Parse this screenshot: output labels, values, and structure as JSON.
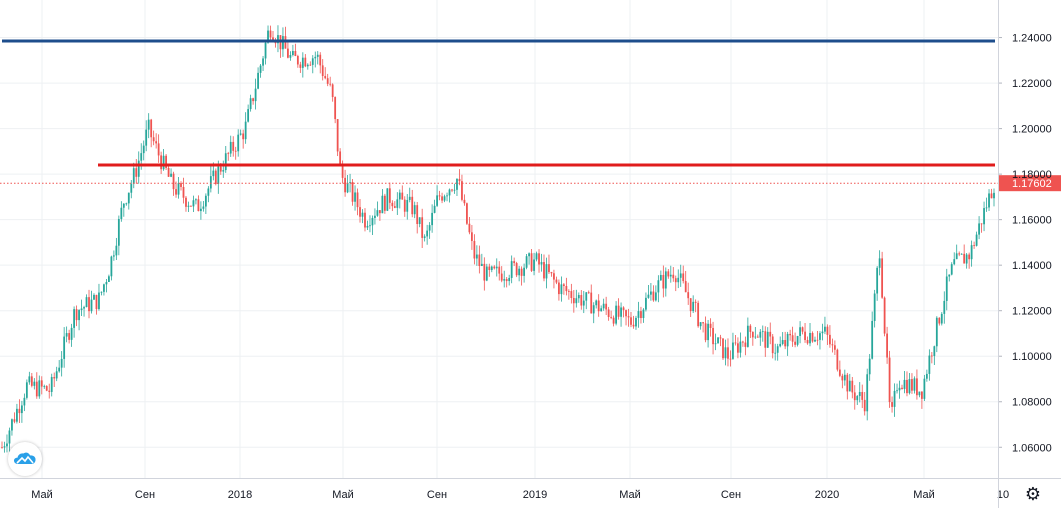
{
  "chart_data": {
    "type": "candlestick",
    "x_ticks": [
      "Май",
      "Сен",
      "2018",
      "Май",
      "Сен",
      "2019",
      "Май",
      "Сен",
      "2020",
      "Май",
      "10"
    ],
    "y_ticks": [
      "1.24000",
      "1.22000",
      "1.20000",
      "1.18000",
      "1.16000",
      "1.14000",
      "1.12000",
      "1.10000",
      "1.08000",
      "1.06000"
    ],
    "ylim": [
      1.0465,
      1.2565
    ],
    "current_price": 1.17602,
    "current_price_label": "1.17602",
    "horizontal_levels": [
      {
        "value": 1.2385,
        "color": "#1e4e8c"
      },
      {
        "value": 1.184,
        "color": "#e01c1c"
      }
    ],
    "series": [
      {
        "x": [
          "2017-03-01",
          "2017-04-01",
          "2017-05-01",
          "2017-06-01",
          "2017-07-01",
          "2017-07-15",
          "2017-08-01",
          "2017-08-15",
          "2017-09-01",
          "2017-09-10",
          "2017-10-01",
          "2017-11-01",
          "2017-12-01",
          "2018-01-01",
          "2018-02-01",
          "2018-03-01",
          "2018-04-01",
          "2018-04-20",
          "2018-05-01",
          "2018-06-01",
          "2018-07-01",
          "2018-08-01",
          "2018-08-15",
          "2018-09-01",
          "2018-09-25",
          "2018-10-15",
          "2018-11-01",
          "2018-12-01",
          "2019-01-01",
          "2019-02-01",
          "2019-03-01",
          "2019-04-01",
          "2019-05-01",
          "2019-06-01",
          "2019-06-25",
          "2019-08-01",
          "2019-09-01",
          "2019-10-01",
          "2019-11-01",
          "2019-12-01",
          "2020-01-01",
          "2020-02-01",
          "2020-02-20",
          "2020-03-09",
          "2020-03-23",
          "2020-04-01",
          "2020-05-01",
          "2020-06-01",
          "2020-06-10",
          "2020-07-01",
          "2020-07-20",
          "2020-07-31"
        ],
        "y": [
          1.06,
          1.087,
          1.085,
          1.12,
          1.125,
          1.14,
          1.168,
          1.18,
          1.2,
          1.192,
          1.175,
          1.165,
          1.183,
          1.2,
          1.245,
          1.23,
          1.232,
          1.215,
          1.18,
          1.16,
          1.17,
          1.165,
          1.15,
          1.17,
          1.178,
          1.145,
          1.135,
          1.138,
          1.142,
          1.13,
          1.125,
          1.12,
          1.115,
          1.13,
          1.138,
          1.112,
          1.1,
          1.112,
          1.103,
          1.11,
          1.11,
          1.085,
          1.08,
          1.148,
          1.07,
          1.09,
          1.085,
          1.13,
          1.14,
          1.145,
          1.165,
          1.176
        ]
      }
    ]
  }
}
